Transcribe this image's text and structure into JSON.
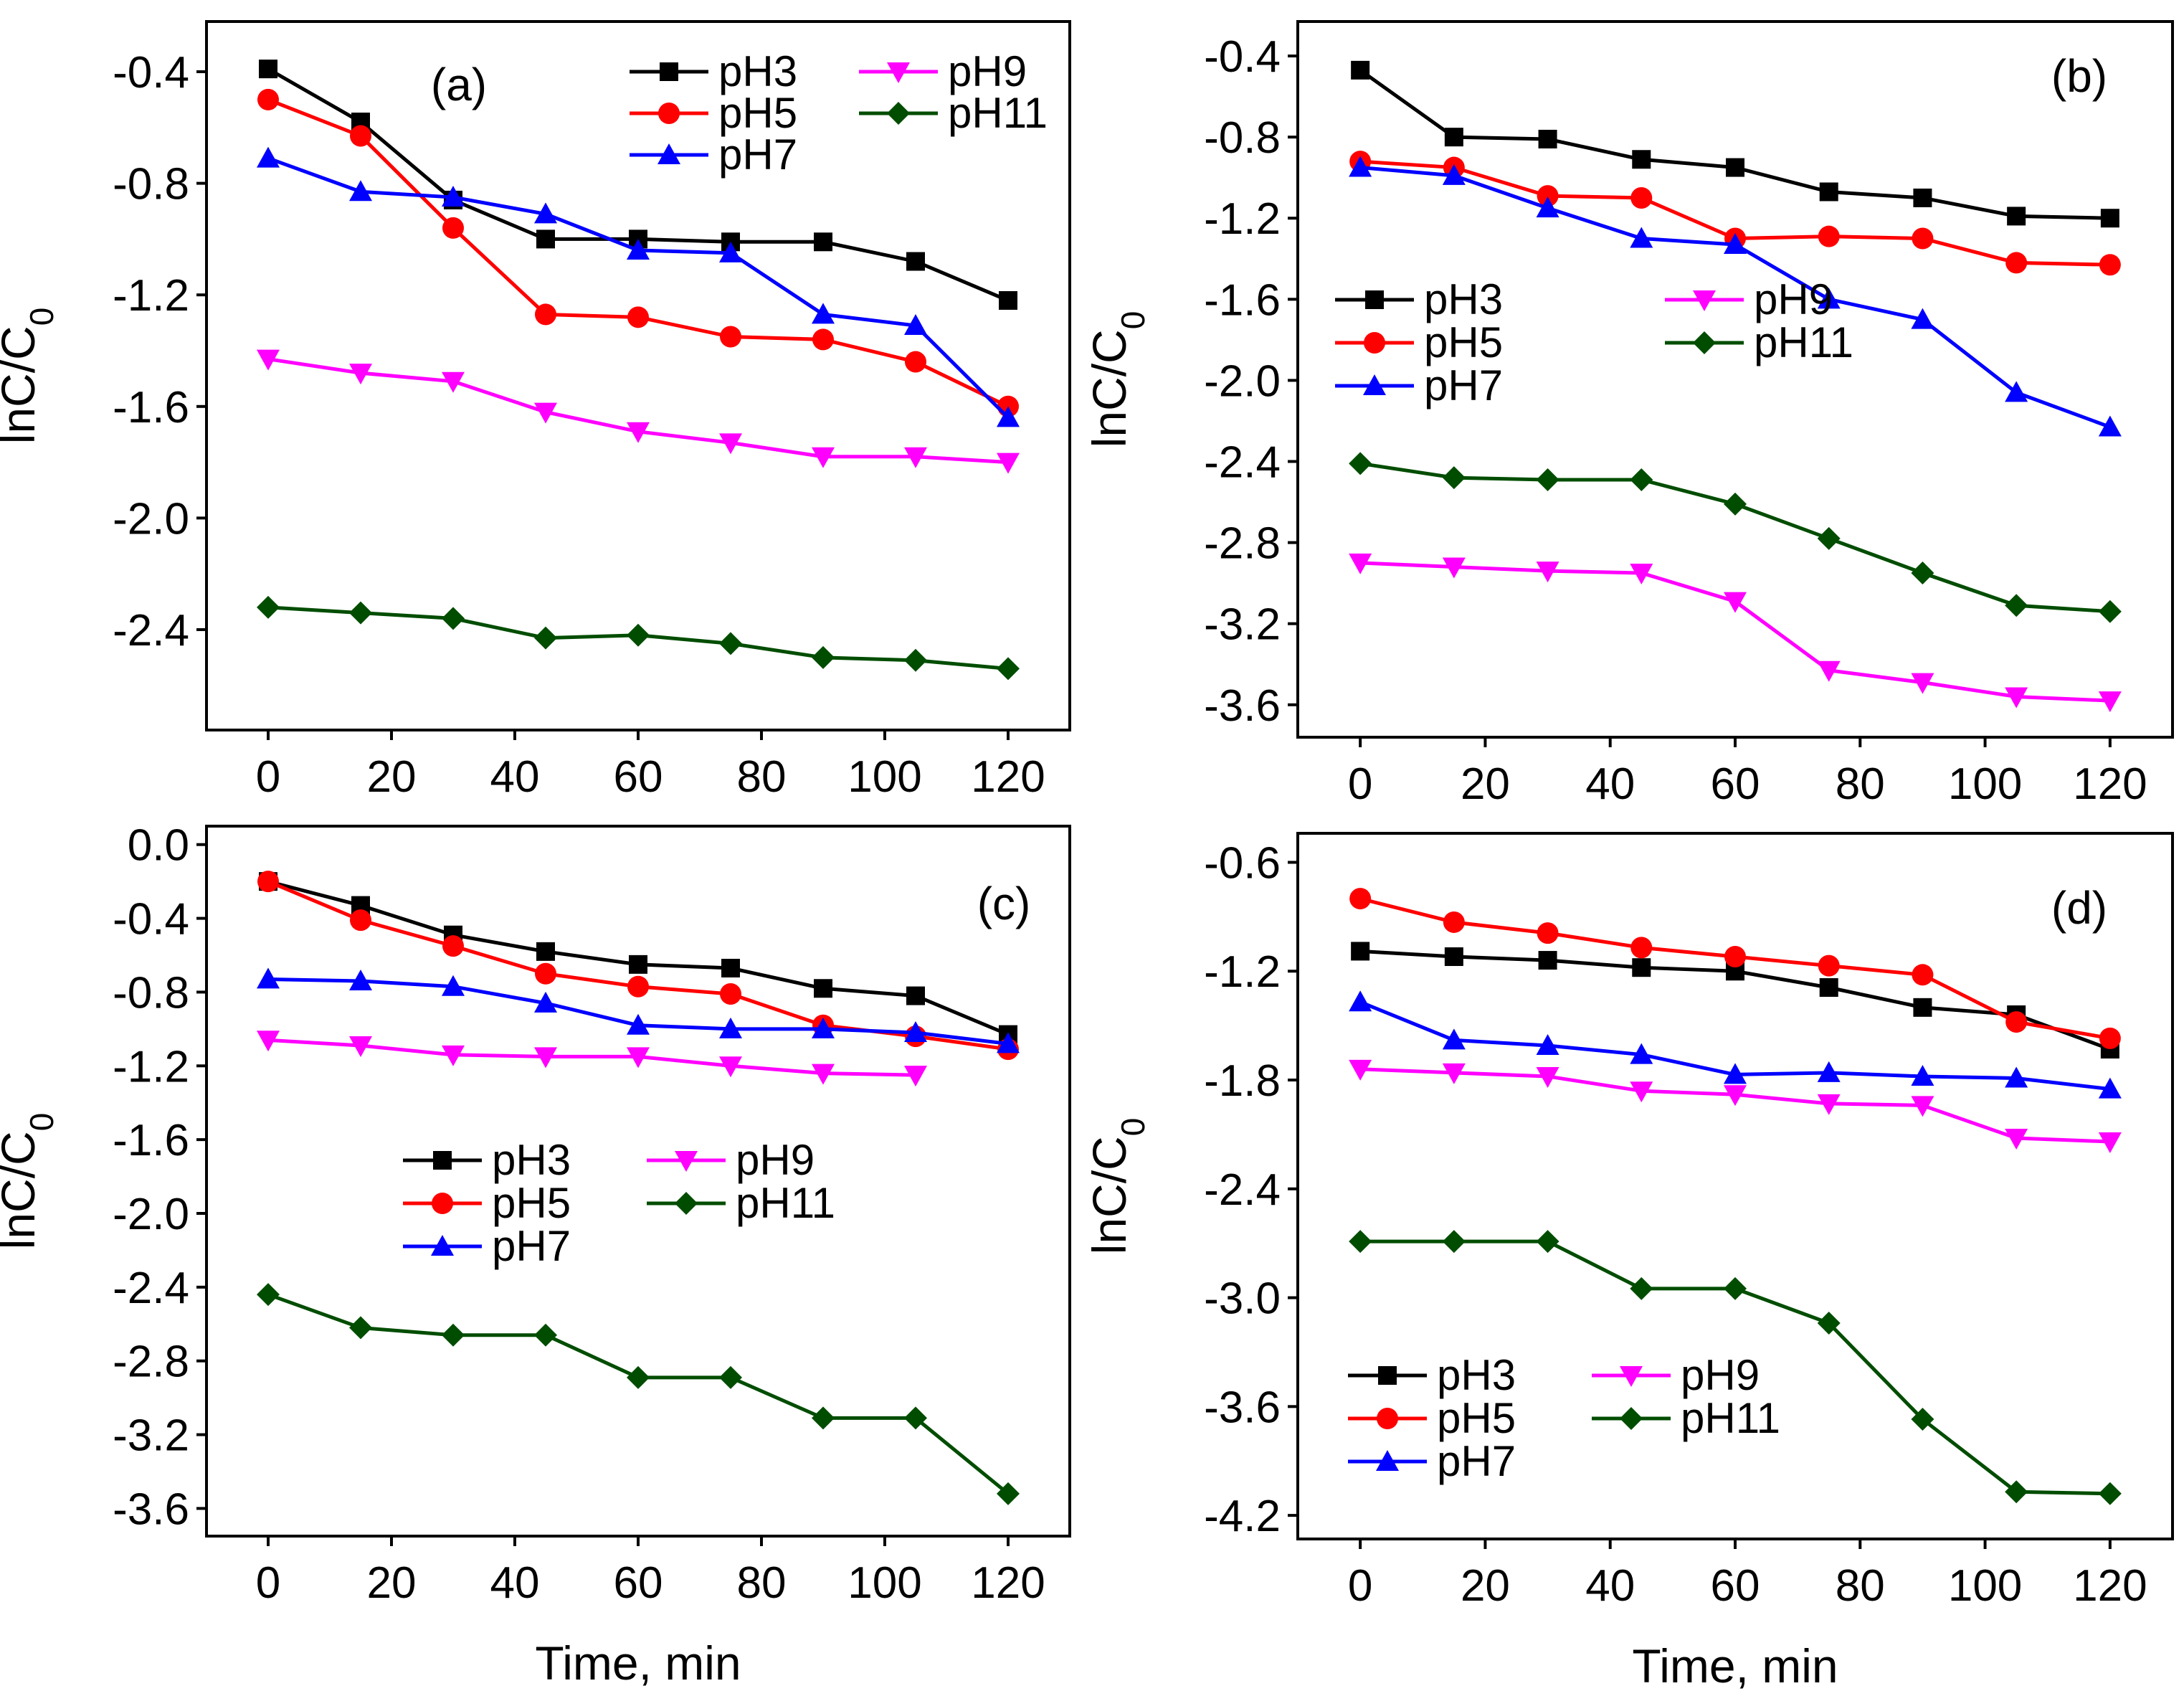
{
  "colors": {
    "pH3": "#000000",
    "pH5": "#ff0000",
    "pH7": "#0000ff",
    "pH9": "#ff00ff",
    "pH11": "#004d00"
  },
  "chart_data": [
    {
      "type": "line",
      "panel_label": "(a)",
      "xlabel": "",
      "ylabel": "lnC/C0",
      "xlim": [
        -10,
        130
      ],
      "ylim": [
        -2.76,
        -0.22
      ],
      "xticks": [
        "0",
        "20",
        "40",
        "60",
        "80",
        "100",
        "120"
      ],
      "yticks": [
        "-0.4",
        "-0.8",
        "-1.2",
        "-1.6",
        "-2.0",
        "-2.4"
      ],
      "legend_position": "top-right",
      "x": [
        0,
        15,
        30,
        45,
        60,
        75,
        90,
        105,
        120
      ],
      "series": [
        {
          "name": "pH3",
          "marker": "square",
          "values": [
            -0.39,
            -0.58,
            -0.86,
            -1.0,
            -1.0,
            -1.01,
            -1.01,
            -1.08,
            -1.22
          ]
        },
        {
          "name": "pH5",
          "marker": "circle",
          "values": [
            -0.5,
            -0.63,
            -0.96,
            -1.27,
            -1.28,
            -1.35,
            -1.36,
            -1.44,
            -1.6
          ]
        },
        {
          "name": "pH7",
          "marker": "triangle-up",
          "values": [
            -0.71,
            -0.83,
            -0.85,
            -0.91,
            -1.04,
            -1.05,
            -1.27,
            -1.31,
            -1.64
          ]
        },
        {
          "name": "pH9",
          "marker": "triangle-down",
          "values": [
            -1.43,
            -1.48,
            -1.51,
            -1.62,
            -1.69,
            -1.73,
            -1.78,
            -1.78,
            -1.8
          ]
        },
        {
          "name": "pH11",
          "marker": "diamond",
          "values": [
            -2.32,
            -2.34,
            -2.36,
            -2.43,
            -2.42,
            -2.45,
            -2.5,
            -2.51,
            -2.54
          ]
        }
      ]
    },
    {
      "type": "line",
      "panel_label": "(b)",
      "xlabel": "",
      "ylabel": "lnC/C0",
      "xlim": [
        -10,
        130
      ],
      "ylim": [
        -3.76,
        -0.23
      ],
      "xticks": [
        "0",
        "20",
        "40",
        "60",
        "80",
        "100",
        "120"
      ],
      "yticks": [
        "-0.4",
        "-0.8",
        "-1.2",
        "-1.6",
        "-2.0",
        "-2.4",
        "-2.8",
        "-3.2",
        "-3.6"
      ],
      "legend_position": "middle-left",
      "x": [
        0,
        15,
        30,
        45,
        60,
        75,
        90,
        105,
        120
      ],
      "series": [
        {
          "name": "pH3",
          "marker": "square",
          "values": [
            -0.47,
            -0.8,
            -0.81,
            -0.91,
            -0.95,
            -1.07,
            -1.1,
            -1.19,
            -1.2
          ]
        },
        {
          "name": "pH5",
          "marker": "circle",
          "values": [
            -0.92,
            -0.95,
            -1.09,
            -1.1,
            -1.3,
            -1.29,
            -1.3,
            -1.42,
            -1.43
          ]
        },
        {
          "name": "pH7",
          "marker": "triangle-up",
          "values": [
            -0.95,
            -0.99,
            -1.15,
            -1.3,
            -1.33,
            -1.6,
            -1.7,
            -2.06,
            -2.23
          ]
        },
        {
          "name": "pH9",
          "marker": "triangle-down",
          "values": [
            -2.9,
            -2.92,
            -2.94,
            -2.95,
            -3.09,
            -3.43,
            -3.49,
            -3.56,
            -3.58
          ]
        },
        {
          "name": "pH11",
          "marker": "diamond",
          "values": [
            -2.41,
            -2.48,
            -2.49,
            -2.49,
            -2.61,
            -2.78,
            -2.95,
            -3.11,
            -3.14
          ]
        }
      ]
    },
    {
      "type": "line",
      "panel_label": "(c)",
      "xlabel": "Time, min",
      "ylabel": "lnC/C0",
      "xlim": [
        -10,
        130
      ],
      "ylim": [
        -3.75,
        0.1
      ],
      "xticks": [
        "0",
        "20",
        "40",
        "60",
        "80",
        "100",
        "120"
      ],
      "yticks": [
        "0.0",
        "-0.4",
        "-0.8",
        "-1.2",
        "-1.6",
        "-2.0",
        "-2.4",
        "-2.8",
        "-3.2",
        "-3.6"
      ],
      "legend_position": "center",
      "x": [
        0,
        15,
        30,
        45,
        60,
        75,
        90,
        105,
        120
      ],
      "series": [
        {
          "name": "pH3",
          "marker": "square",
          "values": [
            -0.2,
            -0.33,
            -0.49,
            -0.58,
            -0.65,
            -0.67,
            -0.78,
            -0.82,
            -1.03
          ]
        },
        {
          "name": "pH5",
          "marker": "circle",
          "values": [
            -0.2,
            -0.41,
            -0.55,
            -0.7,
            -0.77,
            -0.81,
            -0.98,
            -1.04,
            -1.11
          ]
        },
        {
          "name": "pH7",
          "marker": "triangle-up",
          "values": [
            -0.73,
            -0.74,
            -0.77,
            -0.86,
            -0.98,
            -1.0,
            -1.0,
            -1.02,
            -1.08
          ]
        },
        {
          "name": "pH9",
          "marker": "triangle-down",
          "values": [
            -1.06,
            -1.09,
            -1.14,
            -1.15,
            -1.15,
            -1.2,
            -1.24,
            -1.25,
            null
          ]
        },
        {
          "name": "pH11",
          "marker": "diamond",
          "values": [
            -2.44,
            -2.62,
            -2.66,
            -2.66,
            -2.89,
            -2.89,
            -3.11,
            -3.11,
            -3.52
          ]
        }
      ]
    },
    {
      "type": "line",
      "panel_label": "(d)",
      "xlabel": "Time, min",
      "ylabel": "lnC/C0",
      "xlim": [
        -10,
        130
      ],
      "ylim": [
        -4.33,
        -0.44
      ],
      "xticks": [
        "0",
        "20",
        "40",
        "60",
        "80",
        "100",
        "120"
      ],
      "yticks": [
        "-0.6",
        "-1.2",
        "-1.8",
        "-2.4",
        "-3.0",
        "-3.6",
        "-4.2"
      ],
      "legend_position": "bottom-left",
      "x": [
        0,
        15,
        30,
        45,
        60,
        75,
        90,
        105,
        120
      ],
      "series": [
        {
          "name": "pH3",
          "marker": "square",
          "values": [
            -1.09,
            -1.12,
            -1.14,
            -1.18,
            -1.2,
            -1.29,
            -1.4,
            -1.44,
            -1.63
          ]
        },
        {
          "name": "pH5",
          "marker": "circle",
          "values": [
            -0.8,
            -0.93,
            -0.99,
            -1.07,
            -1.12,
            -1.17,
            -1.22,
            -1.48,
            -1.57
          ]
        },
        {
          "name": "pH7",
          "marker": "triangle-up",
          "values": [
            -1.37,
            -1.58,
            -1.61,
            -1.66,
            -1.77,
            -1.76,
            -1.78,
            -1.79,
            -1.85
          ]
        },
        {
          "name": "pH9",
          "marker": "triangle-down",
          "values": [
            -1.74,
            -1.76,
            -1.78,
            -1.86,
            -1.88,
            -1.93,
            -1.94,
            -2.12,
            -2.14
          ]
        },
        {
          "name": "pH11",
          "marker": "diamond",
          "values": [
            -2.69,
            -2.69,
            -2.69,
            -2.95,
            -2.95,
            -3.14,
            -3.67,
            -4.07,
            -4.08
          ]
        }
      ]
    }
  ]
}
